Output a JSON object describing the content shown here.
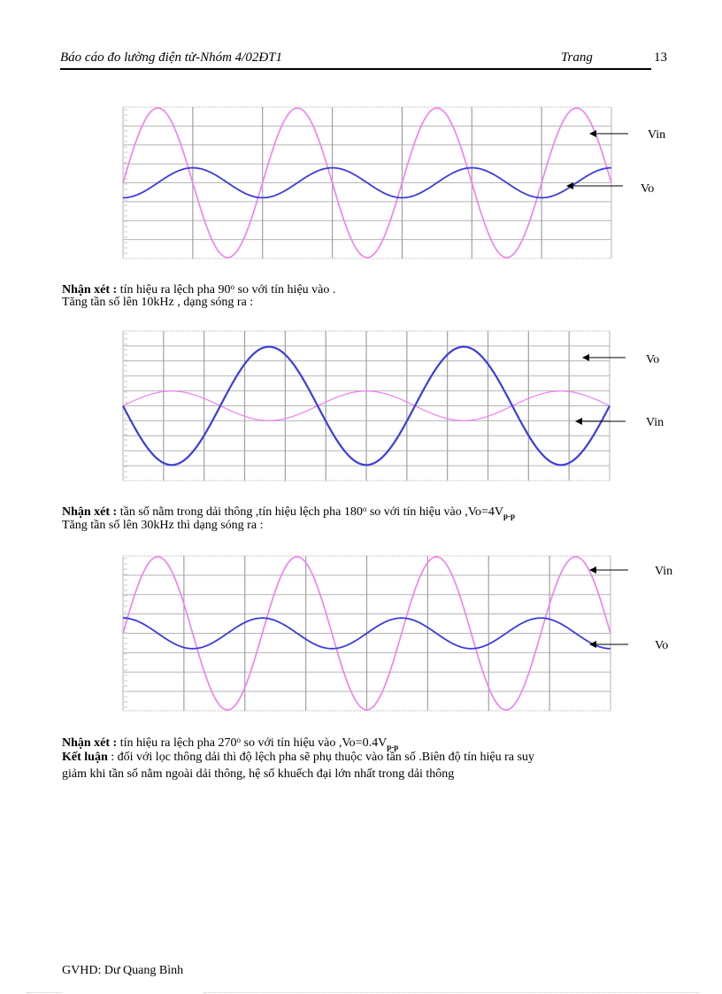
{
  "header": {
    "title": "Báo cáo đo lường điện tử-Nhóm 4/02ĐT1",
    "trang_label": "Trang",
    "page_number": "13"
  },
  "colors": {
    "vin": "#f07ef0",
    "vo": "#3c3cdc",
    "grid": "#b4b4b4",
    "arrow": "#000000"
  },
  "chart_data": [
    {
      "type": "line",
      "title": "",
      "xlabel": "",
      "ylabel": "",
      "grid": true,
      "x_divisions": 7,
      "y_divisions": 8,
      "series": [
        {
          "name": "Vin",
          "amplitude": 1.0,
          "cycles": 3.5,
          "phase_deg": 0,
          "color": "#f07ef0",
          "width": 1.6
        },
        {
          "name": "Vo",
          "amplitude": 0.2,
          "cycles": 3.5,
          "phase_deg": -90,
          "color": "#3c3cdc",
          "width": 1.8
        }
      ],
      "annotations": [
        {
          "text": "Vin",
          "target_series": "Vin"
        },
        {
          "text": "Vo",
          "target_series": "Vo"
        }
      ]
    },
    {
      "type": "line",
      "title": "",
      "xlabel": "",
      "ylabel": "",
      "grid": true,
      "x_divisions": 12,
      "y_divisions": 10,
      "series": [
        {
          "name": "Vin",
          "amplitude": 0.2,
          "cycles": 2.5,
          "phase_deg": 0,
          "color": "#f07ef0",
          "width": 1.2
        },
        {
          "name": "Vo",
          "amplitude": 0.8,
          "cycles": 2.5,
          "phase_deg": 180,
          "color": "#3c3cdc",
          "width": 2.2
        }
      ],
      "annotations": [
        {
          "text": "Vo",
          "target_series": "Vo"
        },
        {
          "text": "Vin",
          "target_series": "Vin"
        }
      ]
    },
    {
      "type": "line",
      "title": "",
      "xlabel": "",
      "ylabel": "",
      "grid": true,
      "x_divisions": 8,
      "y_divisions": 8,
      "series": [
        {
          "name": "Vin",
          "amplitude": 1.0,
          "cycles": 3.5,
          "phase_deg": 0,
          "color": "#f07ef0",
          "width": 1.6
        },
        {
          "name": "Vo",
          "amplitude": 0.2,
          "cycles": 3.5,
          "phase_deg": 90,
          "color": "#3c3cdc",
          "width": 1.8
        }
      ],
      "annotations": [
        {
          "text": "Vin",
          "target_series": "Vin"
        },
        {
          "text": "Vo",
          "target_series": "Vo"
        }
      ]
    }
  ],
  "charts": [
    {
      "labels": [
        "Vin",
        "Vo"
      ]
    },
    {
      "labels": [
        "Vo",
        "Vin"
      ]
    },
    {
      "labels": [
        "Vin",
        "Vo"
      ]
    }
  ],
  "paragraphs": {
    "p1": {
      "bold": "Nhận xét :",
      "text_a": "  tín hiệu ra lệch pha 90",
      "sup": "o",
      "text_b": "  so với tín hiệu vào ."
    },
    "p2": {
      "text": "Tăng tần số lên 10kHz    , dạng sóng ra :"
    },
    "p3": {
      "bold": "Nhận xét :",
      "text_a": " tần số nằm trong dải thông ,tín hiệu lệch pha 180",
      "sup": "o",
      "text_b": " so với tín hiệu vào  ,Vo=4V",
      "sub": "p-p"
    },
    "p4": {
      "text": "Tăng tần số lên 30kHz thì dạng sóng ra :"
    },
    "p5": {
      "bold": "Nhận xét :",
      "text_a": " tín hiệu ra lệch pha  270",
      "sup": "o",
      "text_b": " so với tín hiệu vào  ,Vo=0.4V",
      "sub": "p-p"
    },
    "p6": {
      "bold": "Kết luận",
      "text": " : đối với  lọc thông dải thì độ lệch pha  sẽ phụ thuộc vào tần số .Biên độ tín hiệu ra suy"
    },
    "p7": {
      "text": "giảm khi tần số nằm ngoài  dải thông,  hệ số khuếch đại lớn nhất  trong dải thông"
    }
  },
  "footer": {
    "text": "GVHD:  Dư Quang Bình"
  }
}
